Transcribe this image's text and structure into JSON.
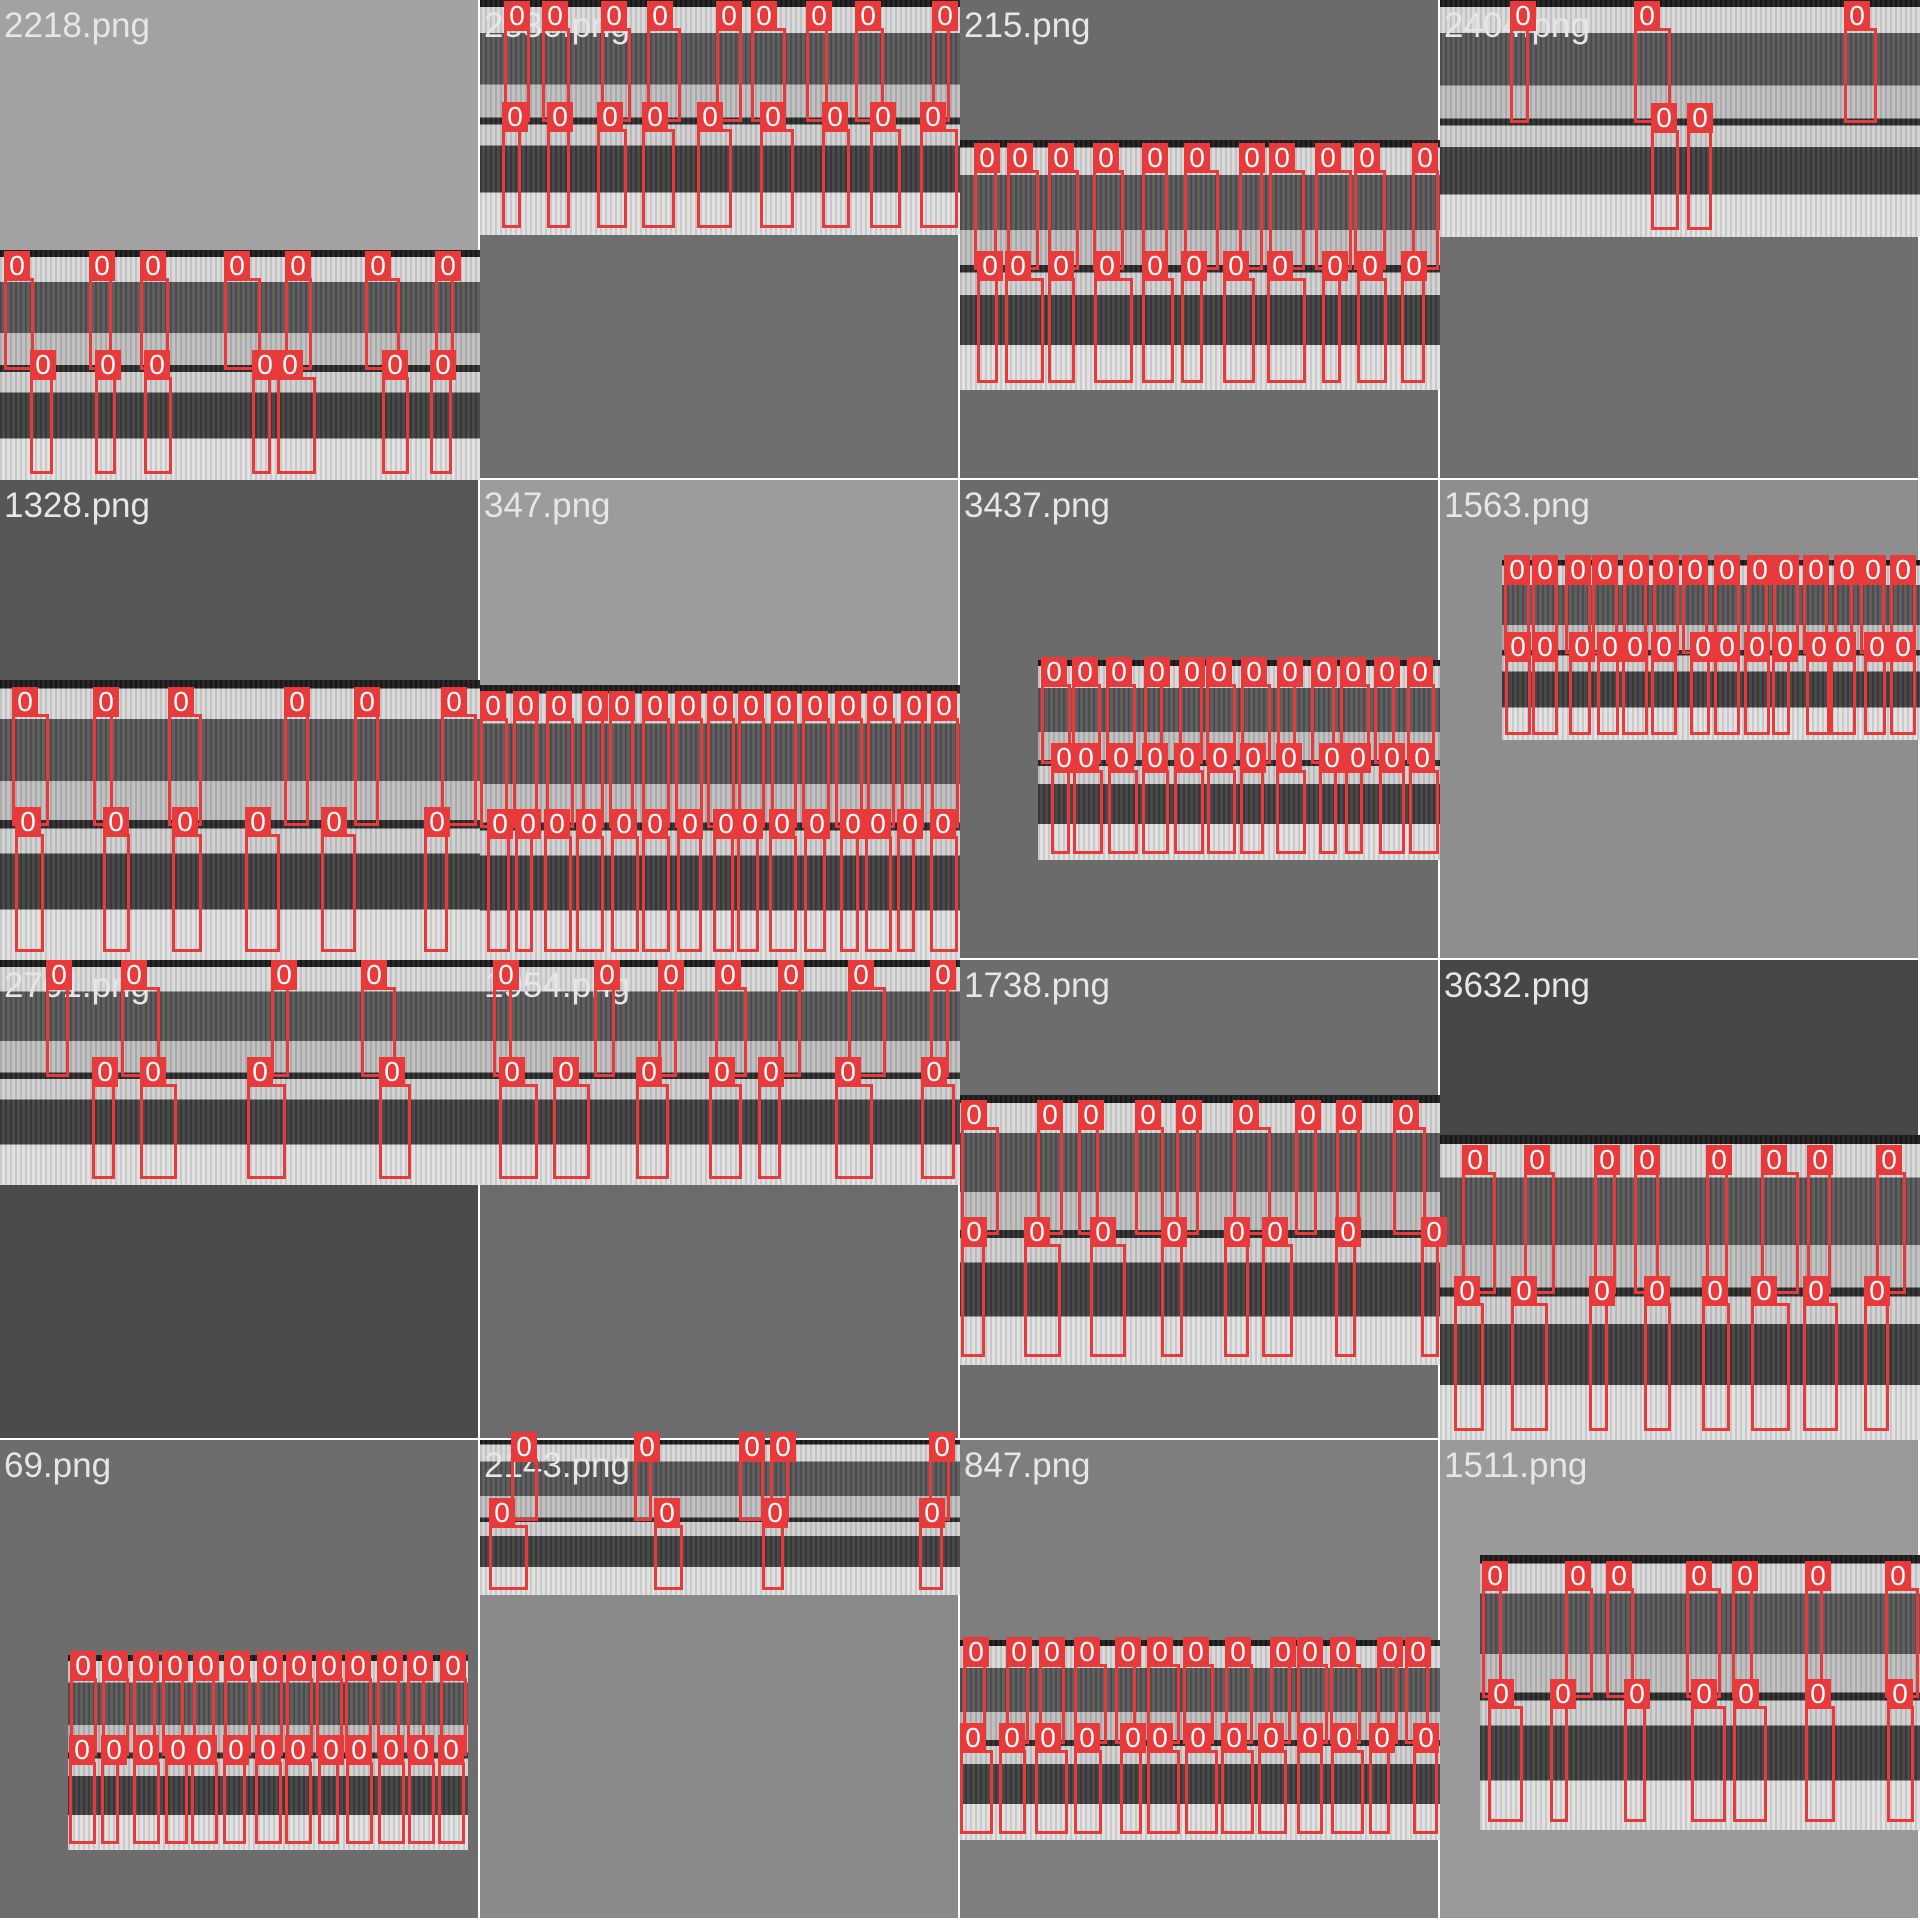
{
  "tiles": [
    {
      "label": "2218.png",
      "box_label": "0",
      "tone": "#a2a2a2",
      "boxes": 14
    },
    {
      "label": "2536.png",
      "box_label": "0",
      "tone": "#6e6e6e",
      "boxes": 18
    },
    {
      "label": "215.png",
      "box_label": "0",
      "tone": "#6b6b6b",
      "boxes": 22
    },
    {
      "label": "2404.png",
      "box_label": "0",
      "tone": "#6f6f6f",
      "boxes": 5
    },
    {
      "label": "1328.png",
      "box_label": "0",
      "tone": "#575757",
      "boxes": 12
    },
    {
      "label": "347.png",
      "box_label": "0",
      "tone": "#9c9c9c",
      "boxes": 30
    },
    {
      "label": "3437.png",
      "box_label": "0",
      "tone": "#6b6b6b",
      "boxes": 24
    },
    {
      "label": "1563.png",
      "box_label": "0",
      "tone": "#8e8e8e",
      "boxes": 28
    },
    {
      "label": "2761.png",
      "box_label": "0",
      "tone": "#4b4b4b",
      "boxes": 8
    },
    {
      "label": "1954.png",
      "box_label": "0",
      "tone": "#6c6c6c",
      "boxes": 14
    },
    {
      "label": "1738.png",
      "box_label": "0",
      "tone": "#6d6d6d",
      "boxes": 17
    },
    {
      "label": "3632.png",
      "box_label": "0",
      "tone": "#474747",
      "boxes": 16
    },
    {
      "label": "69.png",
      "box_label": "0",
      "tone": "#6d6d6d",
      "boxes": 26
    },
    {
      "label": "2143.png",
      "box_label": "0",
      "tone": "#8a8a8a",
      "boxes": 9
    },
    {
      "label": "847.png",
      "box_label": "0",
      "tone": "#7e7e7e",
      "boxes": 26
    },
    {
      "label": "1511.png",
      "box_label": "0",
      "tone": "#9a9a9a",
      "boxes": 14
    }
  ],
  "colors": {
    "box": "#e8393b",
    "label_text": "#e6e6e6"
  }
}
